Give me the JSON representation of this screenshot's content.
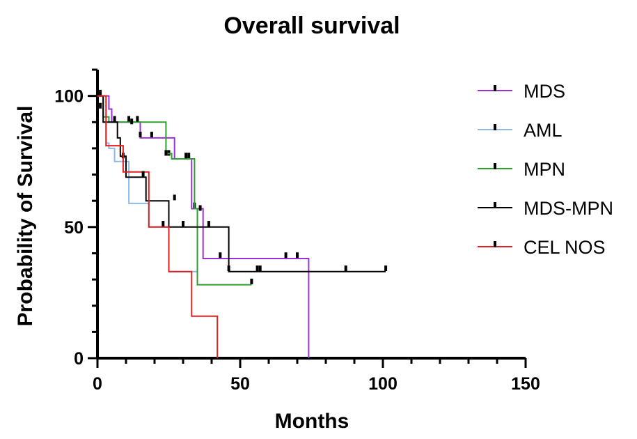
{
  "chart_data": {
    "type": "line",
    "subtype": "kaplan-meier-step",
    "title": "Overall survival",
    "xlabel": "Months",
    "ylabel": "Probability of Survival",
    "xlim": [
      0,
      150
    ],
    "ylim": [
      0,
      110
    ],
    "xticks": [
      0,
      50,
      100,
      150
    ],
    "yticks": [
      0,
      50,
      100
    ],
    "legend_position": "right",
    "series": [
      {
        "name": "MDS",
        "color": "#9B30D9",
        "steps": [
          [
            0,
            100
          ],
          [
            4,
            100
          ],
          [
            4,
            95
          ],
          [
            5,
            95
          ],
          [
            5,
            90
          ],
          [
            15,
            90
          ],
          [
            15,
            84
          ],
          [
            27,
            84
          ],
          [
            27,
            76
          ],
          [
            33,
            76
          ],
          [
            33,
            57
          ],
          [
            37,
            57
          ],
          [
            37,
            38
          ],
          [
            74,
            38
          ],
          [
            74,
            0
          ]
        ],
        "censored": [
          [
            15,
            85
          ],
          [
            19,
            85
          ],
          [
            25,
            78
          ],
          [
            32,
            77
          ],
          [
            34,
            58
          ],
          [
            36,
            57
          ],
          [
            39,
            51
          ],
          [
            43,
            39
          ],
          [
            66,
            39
          ],
          [
            70,
            39
          ]
        ]
      },
      {
        "name": "AML",
        "color": "#8DB9EA",
        "steps": [
          [
            0,
            100
          ],
          [
            2,
            100
          ],
          [
            2,
            90
          ],
          [
            3,
            90
          ],
          [
            3,
            82
          ],
          [
            4,
            82
          ],
          [
            4,
            80
          ],
          [
            6,
            80
          ],
          [
            6,
            75
          ],
          [
            11,
            75
          ],
          [
            11,
            59
          ],
          [
            18,
            59
          ],
          [
            18,
            50
          ],
          [
            25,
            50
          ],
          [
            25,
            33
          ],
          [
            35,
            33
          ]
        ],
        "censored": [
          [
            1,
            96
          ],
          [
            9,
            77
          ],
          [
            56,
            34
          ]
        ]
      },
      {
        "name": "MPN",
        "color": "#2CA02C",
        "steps": [
          [
            0,
            100
          ],
          [
            2,
            100
          ],
          [
            2,
            92
          ],
          [
            4,
            92
          ],
          [
            4,
            90
          ],
          [
            24,
            90
          ],
          [
            24,
            78
          ],
          [
            26,
            78
          ],
          [
            26,
            76
          ],
          [
            34,
            76
          ],
          [
            34,
            57
          ],
          [
            35,
            57
          ],
          [
            35,
            28
          ],
          [
            54,
            28
          ]
        ],
        "censored": [
          [
            6,
            91
          ],
          [
            11,
            91
          ],
          [
            12,
            90
          ],
          [
            14,
            91
          ],
          [
            31,
            77
          ],
          [
            54,
            29
          ]
        ]
      },
      {
        "name": "MDS-MPN",
        "color": "#000000",
        "steps": [
          [
            0,
            100
          ],
          [
            2,
            100
          ],
          [
            2,
            90
          ],
          [
            7,
            90
          ],
          [
            7,
            84
          ],
          [
            8,
            84
          ],
          [
            8,
            77
          ],
          [
            10,
            77
          ],
          [
            10,
            69
          ],
          [
            17,
            69
          ],
          [
            17,
            60
          ],
          [
            25,
            60
          ],
          [
            25,
            50
          ],
          [
            46,
            50
          ],
          [
            46,
            33
          ],
          [
            101,
            33
          ]
        ],
        "censored": [
          [
            1,
            101
          ],
          [
            24,
            78
          ],
          [
            27,
            61
          ],
          [
            30,
            51
          ],
          [
            46,
            34
          ],
          [
            57,
            34
          ],
          [
            87,
            34
          ],
          [
            101,
            34
          ]
        ]
      },
      {
        "name": "CEL NOS",
        "color": "#E0201F",
        "steps": [
          [
            0,
            100
          ],
          [
            3,
            100
          ],
          [
            3,
            81
          ],
          [
            9,
            81
          ],
          [
            9,
            71
          ],
          [
            18,
            71
          ],
          [
            18,
            50
          ],
          [
            25,
            50
          ],
          [
            25,
            33
          ],
          [
            33,
            33
          ],
          [
            33,
            16
          ],
          [
            42,
            16
          ],
          [
            42,
            0
          ]
        ],
        "censored": [
          [
            16,
            70
          ],
          [
            23,
            51
          ]
        ]
      }
    ]
  }
}
